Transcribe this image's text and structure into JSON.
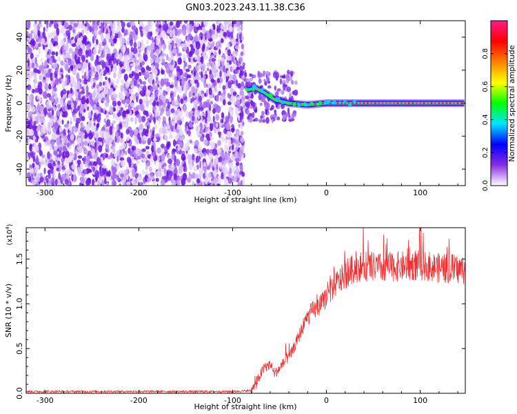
{
  "title": "GN03.2023.243.11.38.C36",
  "chart_data": [
    {
      "type": "heatmap",
      "title": "",
      "xlabel": "Height of straight line (km)",
      "ylabel": "Frequency (Hz)",
      "xlim": [
        -320,
        148
      ],
      "ylim": [
        -50,
        50
      ],
      "xticks": [
        -300,
        -200,
        -100,
        0,
        100
      ],
      "yticks": [
        -40,
        -20,
        0,
        20,
        40
      ],
      "colorbar": {
        "label": "Normalized spectral amplitude",
        "range": [
          0.0,
          1.0
        ],
        "ticks": [
          0.0,
          0.2,
          0.4,
          0.6,
          0.8
        ],
        "tick_labels": [
          "0.0",
          "0.2",
          "0.4",
          "0.6",
          "0.8"
        ],
        "colors": [
          "#ffffff",
          "#8a2be2",
          "#0000ff",
          "#00e5ff",
          "#00ff00",
          "#ffff00",
          "#ff8000",
          "#ff0000",
          "#ff1a8c"
        ]
      },
      "noise_region_x": [
        -320,
        -88
      ],
      "signal_track": [
        {
          "x": -85,
          "y": 8
        },
        {
          "x": -75,
          "y": 9
        },
        {
          "x": -65,
          "y": 6
        },
        {
          "x": -55,
          "y": 2
        },
        {
          "x": -40,
          "y": 0
        },
        {
          "x": -20,
          "y": -1
        },
        {
          "x": 0,
          "y": 0
        },
        {
          "x": 50,
          "y": 0
        },
        {
          "x": 100,
          "y": 0
        },
        {
          "x": 148,
          "y": 0
        }
      ]
    },
    {
      "type": "line",
      "title": "",
      "xlabel": "Height of straight line (km)",
      "ylabel": "SNR (10 * v/v)",
      "y_multiplier": "(x10",
      "y_multiplier_exp": "4",
      "y_multiplier_close": ")",
      "xlim": [
        -320,
        148
      ],
      "ylim": [
        0,
        1.85
      ],
      "xticks": [
        -300,
        -200,
        -100,
        0,
        100
      ],
      "yticks": [
        0.0,
        0.5,
        1.0,
        1.5
      ],
      "ytick_labels": [
        "0.0",
        "0.5",
        "1.0",
        "1.5"
      ],
      "line_color": "#f03030",
      "series": [
        {
          "x": [
            -320,
            -100,
            -80,
            -75,
            -70,
            -65,
            -60,
            -55,
            -50,
            -45,
            -40,
            -35,
            -30,
            -25,
            -20,
            -15,
            -10,
            -5,
            0,
            10,
            20,
            30,
            40,
            60,
            80,
            100,
            120,
            148
          ],
          "values": [
            0.02,
            0.02,
            0.03,
            0.1,
            0.22,
            0.3,
            0.32,
            0.22,
            0.28,
            0.35,
            0.4,
            0.5,
            0.62,
            0.75,
            0.85,
            0.92,
            0.95,
            1.0,
            1.08,
            1.22,
            1.32,
            1.4,
            1.42,
            1.4,
            1.42,
            1.43,
            1.4,
            1.38
          ]
        }
      ]
    }
  ]
}
